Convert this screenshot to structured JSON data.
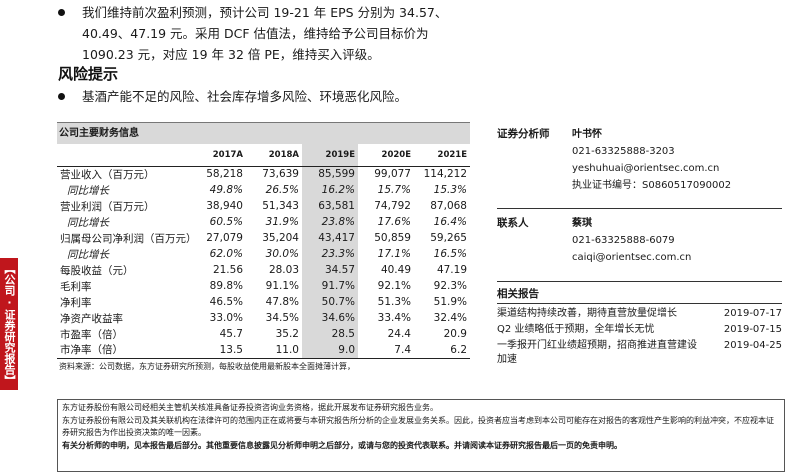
{
  "side_tab": "【公司·证券研究报告】",
  "bullets_top": [
    "我们维持前次盈利预测，预计公司 19-21 年 EPS 分别为 34.57、40.49、47.19 元。采用 DCF 估值法，维持给予公司目标价为 1090.23 元，对应 19 年 32 倍 PE，维持买入评级。"
  ],
  "risk": {
    "title": "风险提示",
    "bullet": "基酒产能不足的风险、社会库存增多风险、环境恶化风险。"
  },
  "fin_table": {
    "title": "公司主要财务信息",
    "headers": [
      "",
      "2017A",
      "2018A",
      "2019E",
      "2020E",
      "2021E"
    ],
    "rows": [
      {
        "label": "营业收入（百万元）",
        "values": [
          "58,218",
          "73,639",
          "85,599",
          "99,077",
          "114,212"
        ],
        "sub": false
      },
      {
        "label": "同比增长",
        "values": [
          "49.8%",
          "26.5%",
          "16.2%",
          "15.7%",
          "15.3%"
        ],
        "sub": true
      },
      {
        "label": "营业利润（百万元）",
        "values": [
          "38,940",
          "51,343",
          "63,581",
          "74,792",
          "87,068"
        ],
        "sub": false
      },
      {
        "label": "同比增长",
        "values": [
          "60.5%",
          "31.9%",
          "23.8%",
          "17.6%",
          "16.4%"
        ],
        "sub": true
      },
      {
        "label": "归属母公司净利润（百万元）",
        "values": [
          "27,079",
          "35,204",
          "43,417",
          "50,859",
          "59,265"
        ],
        "sub": false
      },
      {
        "label": "同比增长",
        "values": [
          "62.0%",
          "30.0%",
          "23.3%",
          "17.1%",
          "16.5%"
        ],
        "sub": true
      },
      {
        "label": "每股收益（元）",
        "values": [
          "21.56",
          "28.03",
          "34.57",
          "40.49",
          "47.19"
        ],
        "sub": false
      },
      {
        "label": "毛利率",
        "values": [
          "89.8%",
          "91.1%",
          "91.7%",
          "92.1%",
          "92.3%"
        ],
        "sub": false
      },
      {
        "label": "净利率",
        "values": [
          "46.5%",
          "47.8%",
          "50.7%",
          "51.3%",
          "51.9%"
        ],
        "sub": false
      },
      {
        "label": "净资产收益率",
        "values": [
          "33.0%",
          "34.5%",
          "34.6%",
          "33.4%",
          "32.4%"
        ],
        "sub": false
      },
      {
        "label": "市盈率（倍）",
        "values": [
          "45.7",
          "35.2",
          "28.5",
          "24.4",
          "20.9"
        ],
        "sub": false
      },
      {
        "label": "市净率（倍）",
        "values": [
          "13.5",
          "11.0",
          "9.0",
          "7.4",
          "6.2"
        ],
        "sub": false
      }
    ],
    "source": "资料来源：公司数据，东方证券研究所预测，每股收益使用最新股本全面摊薄计算，"
  },
  "analyst": {
    "role": "证券分析师",
    "name": "叶书怀",
    "phone": "021-63325888-3203",
    "email": "yeshuhuai@orientsec.com.cn",
    "cert": "执业证书编号：S0860517090002"
  },
  "contact": {
    "role": "联系人",
    "name": "蔡琪",
    "phone": "021-63325888-6079",
    "email": "caiqi@orientsec.com.cn"
  },
  "related": {
    "title": "相关报告",
    "items": [
      {
        "title": "渠道结构持续改善，期待直营放量促增长",
        "date": "2019-07-17"
      },
      {
        "title": "Q2 业绩略低于预期，全年增长无忧",
        "date": "2019-07-15"
      },
      {
        "title": "一季报开门红业绩超预期，招商推进直营建设加速",
        "date": "2019-04-25"
      }
    ]
  },
  "disclaimer": {
    "line1": "东方证券股份有限公司经相关主管机关核准具备证券投资咨询业务资格，据此开展发布证券研究报告业务。",
    "line2": "东方证券股份有限公司及其关联机构在法律许可的范围内正在或将要与本研究报告所分析的企业发展业务关系。因此，投资者应当考虑到本公司可能存在对报告的客观性产生影响的利益冲突，不应视本证券研究报告为作出投资决策的唯一因素。",
    "line3": "有关分析师的申明，见本报告最后部分。其他重要信息披露见分析师申明之后部分，或请与您的投资代表联系。并请阅读本证券研究报告最后一页的免责申明。"
  }
}
